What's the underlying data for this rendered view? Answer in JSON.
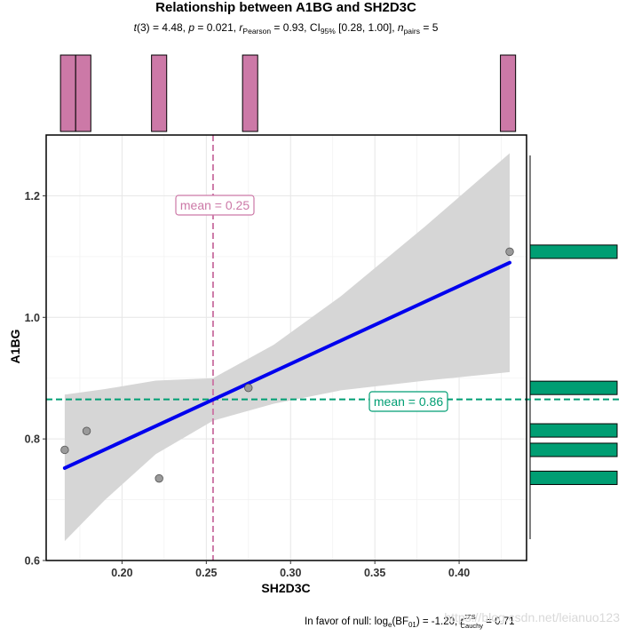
{
  "chart_data": {
    "type": "scatter",
    "title": "Relationship between A1BG and SH2D3C",
    "subtitle": {
      "t_label": "t",
      "df": "3",
      "t_value": "4.48",
      "p_label": "p",
      "p_value": "0.021",
      "r_label": "r",
      "r_sub": "Pearson",
      "r_value": "0.93",
      "ci_label": "CI",
      "ci_sub": "95%",
      "ci_value": "[0.28, 1.00]",
      "n_label": "n",
      "n_sub": "pairs",
      "n_value": "5"
    },
    "xlabel": "SH2D3C",
    "ylabel": "A1BG",
    "xlim": [
      0.155,
      0.44
    ],
    "ylim": [
      0.6,
      1.3
    ],
    "x_ticks": [
      0.2,
      0.25,
      0.3,
      0.35,
      0.4
    ],
    "x_tick_labels": [
      "0.20",
      "0.25",
      "0.30",
      "0.35",
      "0.40"
    ],
    "y_ticks": [
      0.6,
      0.8,
      1.0,
      1.2
    ],
    "y_tick_labels": [
      "0.6",
      "0.8",
      "1.0",
      "1.2"
    ],
    "points": [
      {
        "x": 0.166,
        "y": 0.782
      },
      {
        "x": 0.179,
        "y": 0.813
      },
      {
        "x": 0.222,
        "y": 0.735
      },
      {
        "x": 0.275,
        "y": 0.884
      },
      {
        "x": 0.43,
        "y": 1.108
      }
    ],
    "fit_line": {
      "x": [
        0.166,
        0.43
      ],
      "y": [
        0.752,
        1.09
      ]
    },
    "confidence_band": {
      "x": [
        0.166,
        0.19,
        0.22,
        0.254,
        0.29,
        0.33,
        0.38,
        0.43
      ],
      "lower": [
        0.632,
        0.7,
        0.775,
        0.83,
        0.858,
        0.88,
        0.896,
        0.91
      ],
      "upper": [
        0.873,
        0.882,
        0.896,
        0.9,
        0.955,
        1.035,
        1.15,
        1.27
      ]
    },
    "x_mean": {
      "value": 0.254,
      "label": "mean = 0.25",
      "color": "#cc79a7"
    },
    "y_mean": {
      "value": 0.865,
      "label": "mean = 0.86",
      "color": "#009e73"
    },
    "x_marginal_hist": {
      "color": "#cc79a7",
      "bins": [
        {
          "x0": 0.1635,
          "x1": 0.1725,
          "count": 1
        },
        {
          "x0": 0.1725,
          "x1": 0.1815,
          "count": 1
        },
        {
          "x0": 0.2175,
          "x1": 0.2265,
          "count": 1
        },
        {
          "x0": 0.2715,
          "x1": 0.2805,
          "count": 1
        },
        {
          "x0": 0.4245,
          "x1": 0.4335,
          "count": 1
        }
      ]
    },
    "y_marginal_hist": {
      "color": "#009e73",
      "bins": [
        {
          "y0": 0.725,
          "y1": 0.747,
          "count": 1
        },
        {
          "y0": 0.771,
          "y1": 0.793,
          "count": 1
        },
        {
          "y0": 0.803,
          "y1": 0.825,
          "count": 1
        },
        {
          "y0": 0.873,
          "y1": 0.895,
          "count": 1
        },
        {
          "y0": 1.097,
          "y1": 1.119,
          "count": 1
        }
      ]
    },
    "caption": {
      "prefix": "In favor of null: log",
      "log_sub": "e",
      "bf_label": "(BF",
      "bf_sub": "01",
      "bf_value": ") = -1.20, ",
      "r_label": "r",
      "r_sup": "JZS",
      "r_sub": "Cauchy",
      "r_value": " = 0.71"
    },
    "watermark": "https://blog.csdn.net/leianuo123"
  }
}
